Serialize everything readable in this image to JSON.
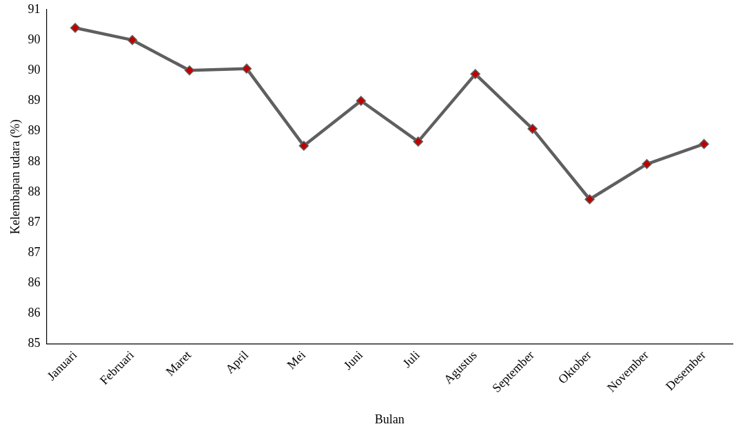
{
  "chart_data": {
    "type": "line",
    "xlabel": "Bulan",
    "ylabel": "Kelembapan udara (%)",
    "categories": [
      "Januari",
      "Februari",
      "Maret",
      "April",
      "Mei",
      "Juni",
      "Juli",
      "Agustus",
      "September",
      "Oktober",
      "November",
      "Desember"
    ],
    "series": [
      {
        "color": "#5f5f5f",
        "colors": [
          "#c00000",
          "#c00000",
          "#c00000",
          "#c00000",
          "#c00000",
          "#c00000",
          "#c00000",
          "#c00000",
          "#c00000",
          "#c00000",
          "#c00000",
          "#c00000"
        ],
        "values": [
          90.2,
          90.0,
          89.5,
          89.53,
          88.26,
          89.0,
          88.33,
          89.44,
          88.54,
          87.38,
          87.96,
          88.29
        ]
      }
    ],
    "ylim": [
      85,
      90.5
    ],
    "yticks": [
      {
        "value": 85,
        "label": "85"
      },
      {
        "value": 85.5,
        "label": "86"
      },
      {
        "value": 86,
        "label": "86"
      },
      {
        "value": 86.5,
        "label": "87"
      },
      {
        "value": 87,
        "label": "87"
      },
      {
        "value": 87.5,
        "label": "88"
      },
      {
        "value": 88,
        "label": "88"
      },
      {
        "value": 88.5,
        "label": "89"
      },
      {
        "value": 89,
        "label": "89"
      },
      {
        "value": 89.5,
        "label": "90"
      },
      {
        "value": 90,
        "label": "90"
      },
      {
        "value": 90.5,
        "label": "91"
      }
    ],
    "grid": false,
    "legend": false,
    "marker": "diamond",
    "line_style": "solid"
  }
}
